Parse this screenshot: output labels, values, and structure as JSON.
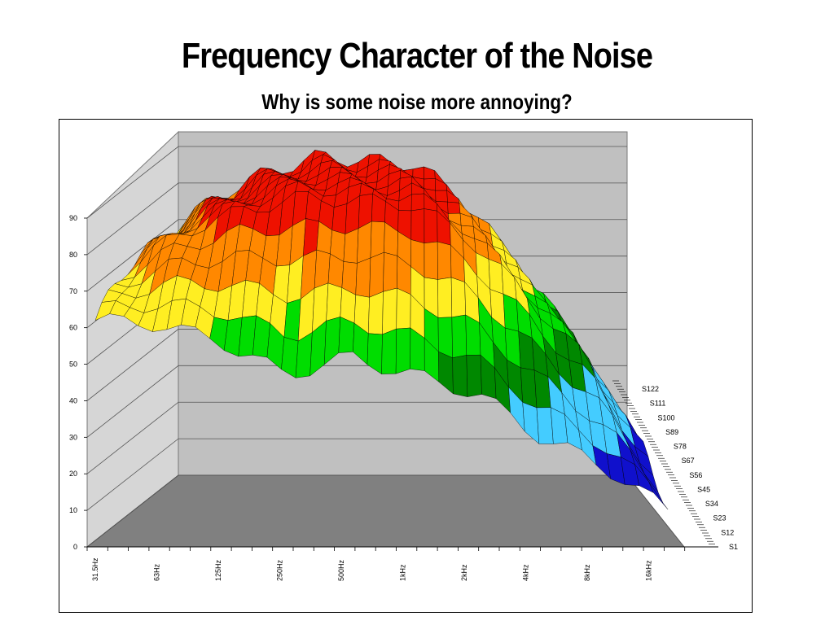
{
  "slide": {
    "title": "Frequency Character of the Noise",
    "subtitle": "Why is some noise more annoying?"
  },
  "chart_data": {
    "type": "surface3d",
    "title": "",
    "xlabel": "",
    "ylabel": "",
    "zlabel": "",
    "zlim": [
      0,
      90
    ],
    "z_ticks": [
      0,
      10,
      20,
      30,
      40,
      50,
      60,
      70,
      80,
      90
    ],
    "x_ticks": [
      "31.5Hz",
      "63Hz",
      "125Hz",
      "250Hz",
      "500Hz",
      "1kHz",
      "2kHz",
      "4kHz",
      "8kHz",
      "16kHz"
    ],
    "series_ticks": [
      "S1",
      "S12",
      "S23",
      "S34",
      "S45",
      "S56",
      "S67",
      "S78",
      "S89",
      "S100",
      "S111",
      "S122"
    ],
    "grid": true,
    "band_colors": [
      "#8800cc",
      "#1010cc",
      "#44ccff",
      "#008800",
      "#00dd00",
      "#ffee22",
      "#ff8800",
      "#ee1100"
    ],
    "surface_profile": {
      "freq": [
        "31.5Hz",
        "63Hz",
        "125Hz",
        "250Hz",
        "500Hz",
        "1kHz",
        "2kHz",
        "4kHz",
        "8kHz",
        "16kHz"
      ],
      "front_level": [
        62,
        61,
        56,
        47,
        52,
        47,
        42,
        30,
        22,
        10
      ],
      "peak_level": [
        70,
        80,
        86,
        90,
        89,
        88,
        78,
        62,
        45,
        20
      ]
    }
  }
}
